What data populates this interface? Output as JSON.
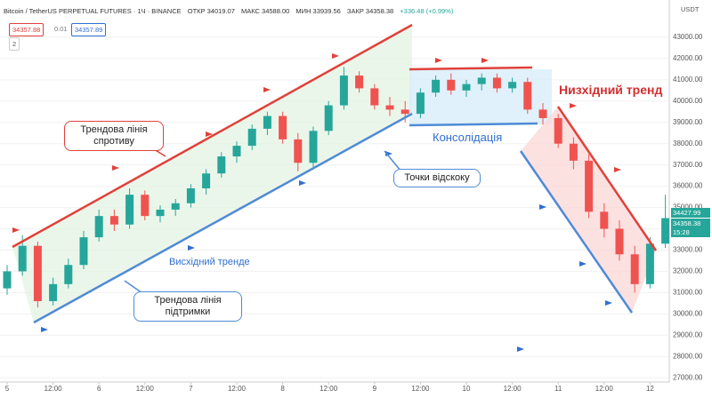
{
  "chart_data": {
    "type": "candlestick",
    "header": {
      "symbol": "Bitcoin / TetherUS PERPETUAL FUTURES · 1Ч · BINANCE",
      "open": "ОТКР 34019.07",
      "high": "МАКС 34588.00",
      "low": "МИН 33939.56",
      "close": "ЗАКР 34358.38",
      "change": "+336.48 (+0.99%)",
      "currency": "USDT"
    },
    "badges": {
      "sell": "34357.88",
      "spread": "0.01",
      "buy": "34357.89",
      "count": "2"
    },
    "price_tags": {
      "last": "34427.99",
      "close": "34358.38",
      "timer": "15:28"
    },
    "annotations": {
      "resistance": "Трендова лінія спротиву",
      "support": "Трендова лінія підтримки",
      "uptrend": "Висхідний тренде",
      "bounce": "Точки відскоку",
      "consolidation": "Консолідація",
      "downtrend": "Низхідний тренд"
    },
    "up_color": "#26a69a",
    "down_color": "#ef5350",
    "categories": [
      "5",
      null,
      null,
      "12:00",
      null,
      null,
      "6",
      null,
      null,
      "12:00",
      null,
      null,
      "7",
      null,
      null,
      "12:00",
      null,
      null,
      "8",
      null,
      null,
      "12:00",
      null,
      null,
      "9",
      null,
      null,
      "12:00",
      null,
      null,
      "10",
      null,
      null,
      "12:00",
      null,
      null,
      "11",
      null,
      null,
      "12:00",
      null,
      null,
      "12",
      null
    ],
    "open": [
      31200,
      32000,
      33200,
      30600,
      31400,
      32300,
      33600,
      34600,
      34200,
      35600,
      34600,
      34900,
      35200,
      35900,
      36600,
      37400,
      37900,
      38700,
      39300,
      38200,
      37100,
      38600,
      39800,
      41200,
      40600,
      39800,
      39600,
      39400,
      40400,
      41000,
      40500,
      40800,
      41100,
      40600,
      40900,
      39600,
      39200,
      38000,
      37200,
      34800,
      34000,
      32800,
      31400,
      33300
    ],
    "high": [
      32300,
      33700,
      33400,
      31700,
      32600,
      33900,
      34900,
      34900,
      35900,
      35800,
      35100,
      35400,
      36100,
      36800,
      37600,
      38100,
      38900,
      39500,
      39500,
      38500,
      38800,
      40000,
      41600,
      41400,
      40800,
      40200,
      40000,
      40600,
      41200,
      41300,
      41000,
      41300,
      41300,
      41100,
      41100,
      39900,
      39400,
      38300,
      37500,
      35200,
      34400,
      33200,
      33600,
      35600
    ],
    "low": [
      30900,
      31800,
      30300,
      30400,
      31200,
      32100,
      33400,
      33900,
      34000,
      34400,
      34300,
      34600,
      35000,
      35600,
      36400,
      37100,
      37700,
      38400,
      38000,
      36700,
      36900,
      38400,
      39600,
      40400,
      39600,
      39300,
      39000,
      39200,
      40200,
      40300,
      40200,
      40500,
      40400,
      40400,
      39400,
      38900,
      37800,
      36800,
      34500,
      33600,
      32500,
      31000,
      31200,
      33100
    ],
    "close": [
      32000,
      33200,
      30600,
      31400,
      32300,
      33600,
      34600,
      34200,
      35600,
      34600,
      34900,
      35200,
      35900,
      36600,
      37400,
      37900,
      38700,
      39300,
      38200,
      37100,
      38600,
      39800,
      41200,
      40600,
      39800,
      39600,
      39400,
      40400,
      41000,
      40500,
      40800,
      41100,
      40600,
      40900,
      39600,
      39200,
      38000,
      37200,
      34800,
      34000,
      32800,
      31400,
      33300,
      34500
    ],
    "ylim": [
      26800,
      44750
    ],
    "yticks": [
      {
        "value": 27000,
        "label": "27000.00"
      },
      {
        "value": 28000,
        "label": "28000.00"
      },
      {
        "value": 29000,
        "label": "29000.00"
      },
      {
        "value": 30000,
        "label": "30000.00"
      },
      {
        "value": 31000,
        "label": "31000.00"
      },
      {
        "value": 32000,
        "label": "32000.00"
      },
      {
        "value": 33000,
        "label": "33000.00"
      },
      {
        "value": 34000,
        "label": "34000.00"
      },
      {
        "value": 35000,
        "label": "35000.00"
      },
      {
        "value": 36000,
        "label": "36000.00"
      },
      {
        "value": 37000,
        "label": "37000.00"
      },
      {
        "value": 38000,
        "label": "38000.00"
      },
      {
        "value": 39000,
        "label": "39000.00"
      },
      {
        "value": 40000,
        "label": "40000.00"
      },
      {
        "value": 41000,
        "label": "41000.00"
      },
      {
        "value": 42000,
        "label": "42000.00"
      },
      {
        "value": 43000,
        "label": "43000.00"
      }
    ],
    "grid": true
  }
}
